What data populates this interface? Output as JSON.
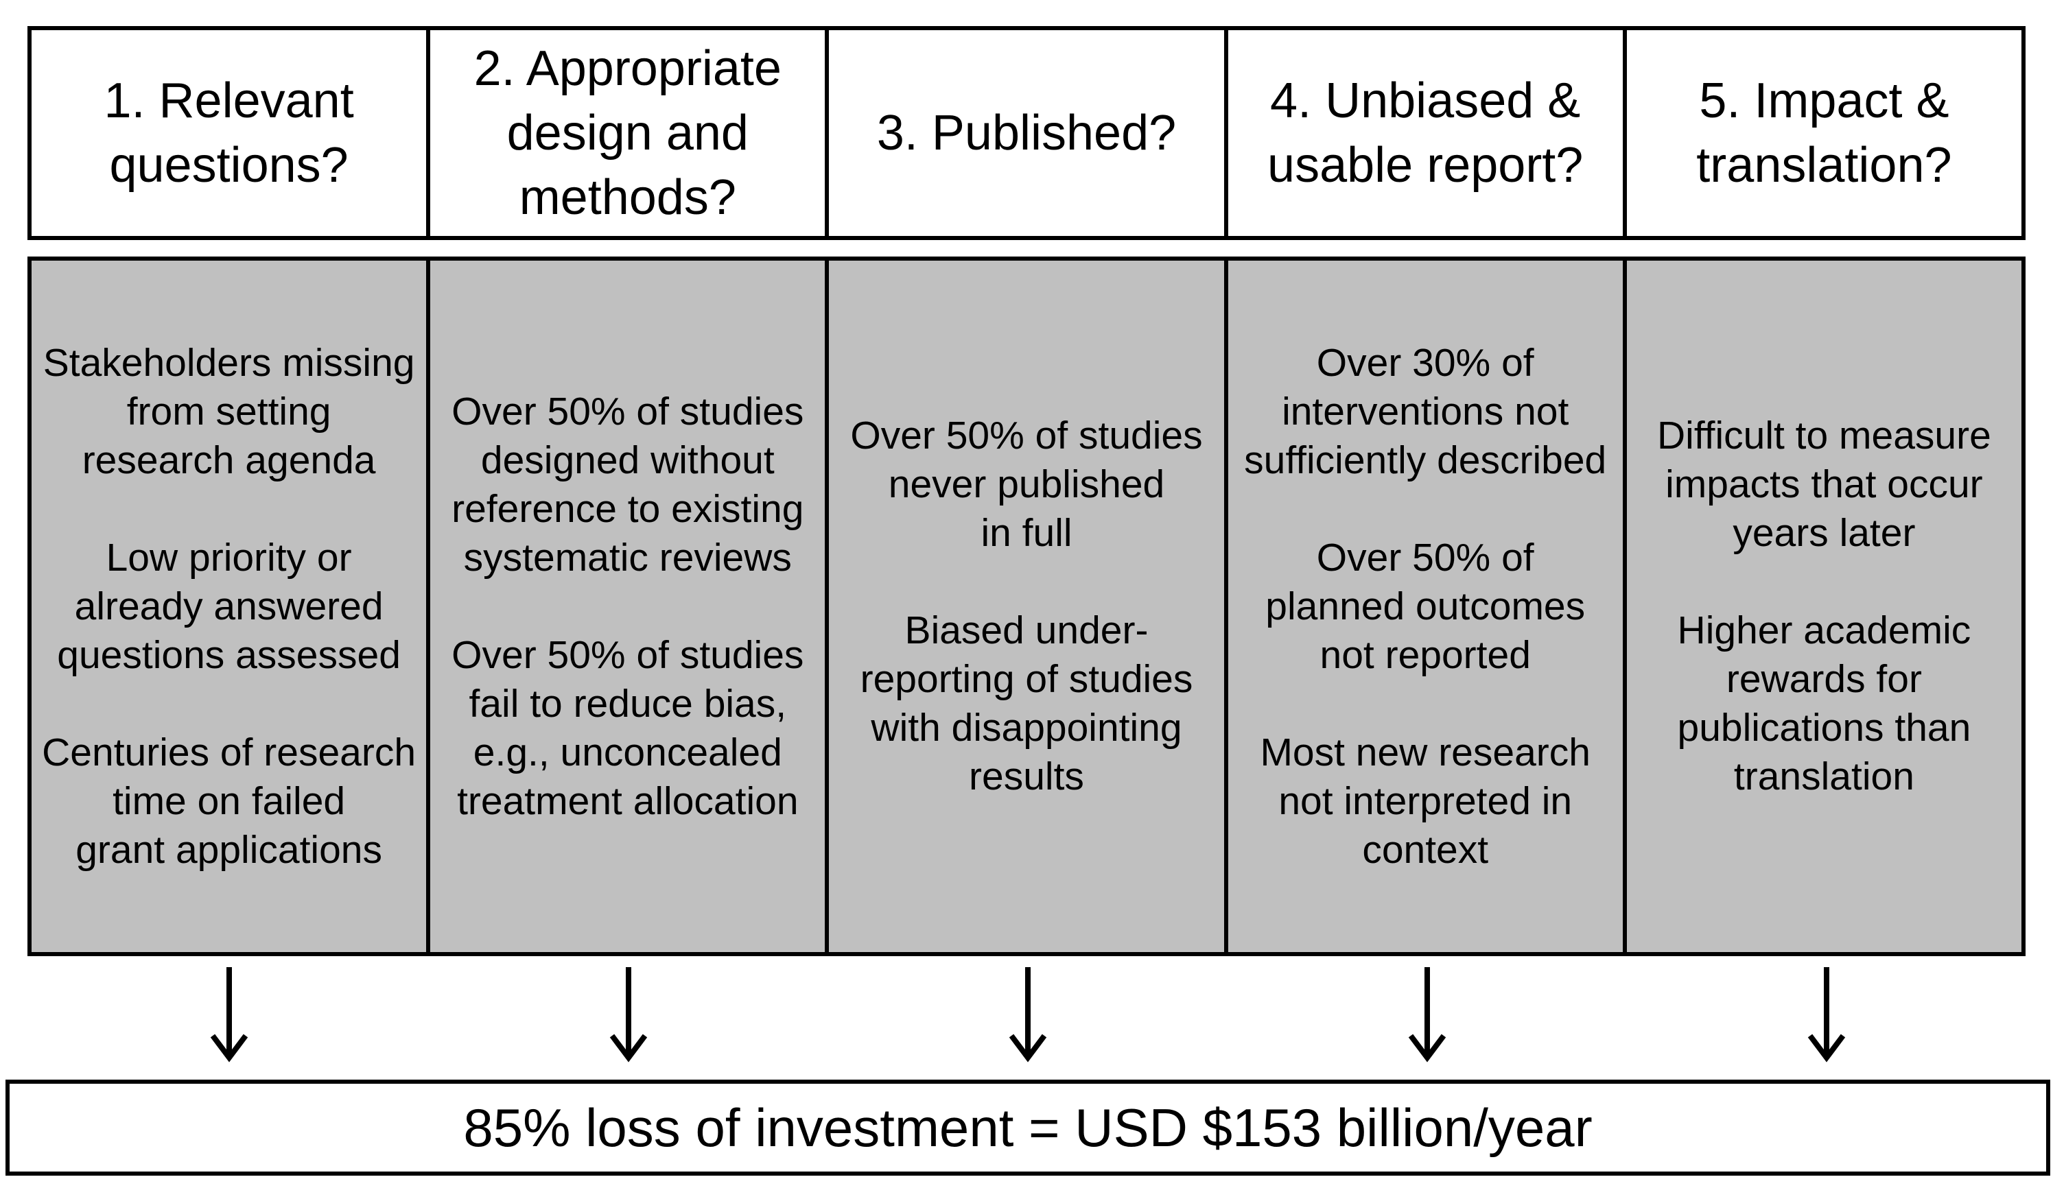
{
  "columns": [
    {
      "header": "1. Relevant\nquestions?",
      "paragraphs": [
        "Stakeholders missing\nfrom setting\nresearch agenda",
        "Low priority or\nalready answered\nquestions assessed",
        "Centuries of research\ntime on failed\ngrant applications"
      ]
    },
    {
      "header": "2. Appropriate\ndesign and\nmethods?",
      "paragraphs": [
        "Over 50% of studies\ndesigned without\nreference to existing\nsystematic reviews",
        "Over 50% of studies\nfail to reduce bias,\ne.g., unconcealed\ntreatment allocation"
      ]
    },
    {
      "header": "3. Published?",
      "paragraphs": [
        "Over 50% of studies\nnever published\nin full",
        "Biased under-\nreporting of studies\nwith disappointing\nresults"
      ]
    },
    {
      "header": "4. Unbiased &\nusable report?",
      "paragraphs": [
        "Over 30% of\ninterventions not\nsufficiently described",
        "Over 50% of\nplanned outcomes\nnot reported",
        "Most new research\nnot interpreted in\ncontext"
      ]
    },
    {
      "header": "5. Impact &\ntranslation?",
      "paragraphs": [
        "Difficult to measure\nimpacts that occur\nyears later",
        "Higher academic\nrewards for\npublications than\ntranslation"
      ]
    }
  ],
  "footer": {
    "text": "85% loss of investment = USD $153 billion/year"
  },
  "colors": {
    "box_fill": "#c0c0c0",
    "header_fill": "#ffffff",
    "border": "#000000"
  }
}
